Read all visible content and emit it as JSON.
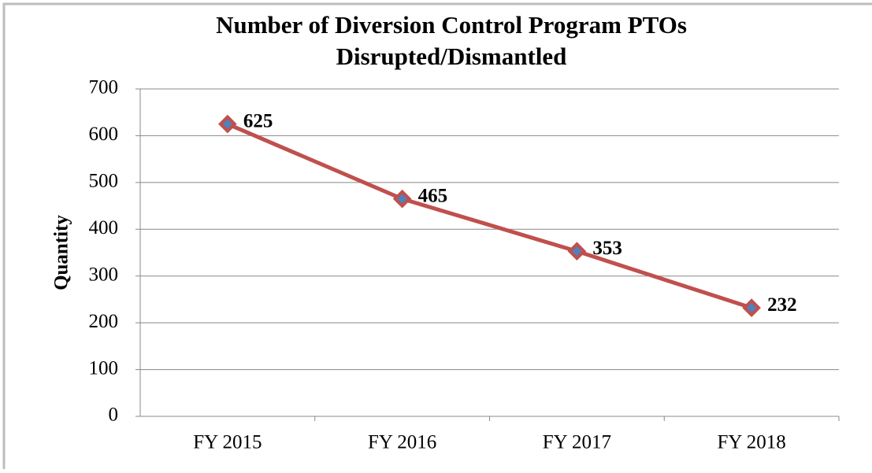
{
  "chart_data": {
    "type": "line",
    "title": [
      "Number of Diversion Control Program PTOs",
      "Disrupted/Dismantled"
    ],
    "y_label": "Quantity",
    "categories": [
      "FY 2015",
      "FY 2016",
      "FY 2017",
      "FY 2018"
    ],
    "values": [
      625,
      465,
      353,
      232
    ],
    "color": "#c0504d",
    "marker_color": "#4f81bd",
    "ylim": [
      0,
      700
    ],
    "yticks": [
      0,
      100,
      200,
      300,
      400,
      500,
      600,
      700
    ],
    "grid": true
  }
}
